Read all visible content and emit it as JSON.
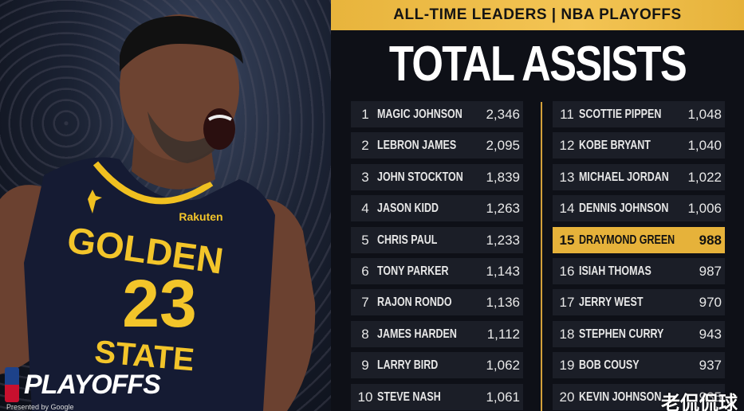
{
  "header": {
    "subtitle": "ALL-TIME LEADERS | NBA PLAYOFFS",
    "title": "TOTAL ASSISTS"
  },
  "photo": {
    "jersey_team_line1": "GOLDEN",
    "jersey_team_line2": "STATE",
    "jersey_number": "23",
    "jersey_sponsor": "Rakuten"
  },
  "branding": {
    "playoffs_label": "PLAYOFFS",
    "powered_by": "Presented by Google"
  },
  "watermark": "老侃侃球",
  "colors": {
    "accent_gold": "#e8b43c",
    "row_bg": "#1b1e27",
    "panel_bg": "#0e1017"
  },
  "highlight_rank": 15,
  "leaders_left": [
    {
      "rank": "1",
      "name": "MAGIC JOHNSON",
      "value": "2,346"
    },
    {
      "rank": "2",
      "name": "LEBRON JAMES",
      "value": "2,095"
    },
    {
      "rank": "3",
      "name": "JOHN STOCKTON",
      "value": "1,839"
    },
    {
      "rank": "4",
      "name": "JASON KIDD",
      "value": "1,263"
    },
    {
      "rank": "5",
      "name": "CHRIS PAUL",
      "value": "1,233"
    },
    {
      "rank": "6",
      "name": "TONY PARKER",
      "value": "1,143"
    },
    {
      "rank": "7",
      "name": "RAJON RONDO",
      "value": "1,136"
    },
    {
      "rank": "8",
      "name": "JAMES HARDEN",
      "value": "1,112"
    },
    {
      "rank": "9",
      "name": "LARRY BIRD",
      "value": "1,062"
    },
    {
      "rank": "10",
      "name": "STEVE NASH",
      "value": "1,061"
    }
  ],
  "leaders_right": [
    {
      "rank": "11",
      "name": "SCOTTIE PIPPEN",
      "value": "1,048"
    },
    {
      "rank": "12",
      "name": "KOBE BRYANT",
      "value": "1,040"
    },
    {
      "rank": "13",
      "name": "MICHAEL JORDAN",
      "value": "1,022"
    },
    {
      "rank": "14",
      "name": "DENNIS JOHNSON",
      "value": "1,006"
    },
    {
      "rank": "15",
      "name": "DRAYMOND GREEN",
      "value": "988"
    },
    {
      "rank": "16",
      "name": "ISIAH THOMAS",
      "value": "987"
    },
    {
      "rank": "17",
      "name": "JERRY WEST",
      "value": "970"
    },
    {
      "rank": "18",
      "name": "STEPHEN CURRY",
      "value": "943"
    },
    {
      "rank": "19",
      "name": "BOB COUSY",
      "value": "937"
    },
    {
      "rank": "20",
      "name": "KEVIN JOHNSON",
      "value": "935"
    }
  ]
}
